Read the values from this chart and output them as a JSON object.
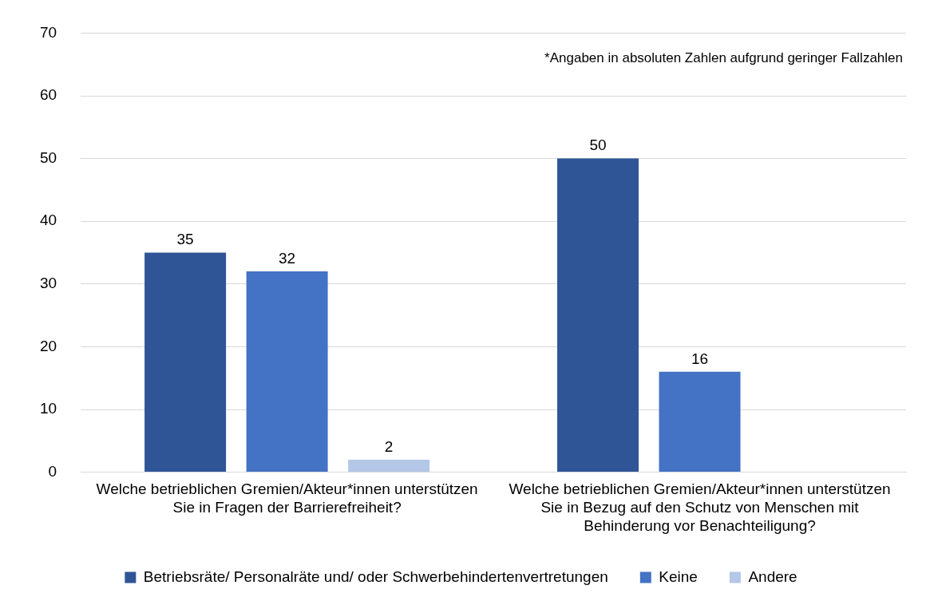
{
  "chart_data": {
    "type": "bar",
    "categories": [
      "Welche betrieblichen Gremien/Akteur*innen unterstützen Sie in Fragen der Barrierefreiheit?",
      "Welche betrieblichen Gremien/Akteur*innen unterstützen Sie in Bezug auf den Schutz von Menschen mit Behinderung vor Benachteiligung?"
    ],
    "series": [
      {
        "name": "Betriebsräte/ Personalräte und/ oder Schwerbehindertenvertretungen",
        "color": "#2f5597",
        "values": [
          35,
          50
        ]
      },
      {
        "name": "Keine",
        "color": "#4472c4",
        "values": [
          32,
          16
        ]
      },
      {
        "name": "Andere",
        "color": "#b4c7e7",
        "values": [
          2,
          null
        ]
      }
    ],
    "ylim": [
      0,
      70
    ],
    "yticks": [
      0,
      10,
      20,
      30,
      40,
      50,
      60,
      70
    ],
    "grid": "y",
    "legend": "bottom",
    "data_labels": true,
    "annotations": [
      "*Angaben in absoluten Zahlen aufgrund geringer Fallzahlen"
    ]
  }
}
